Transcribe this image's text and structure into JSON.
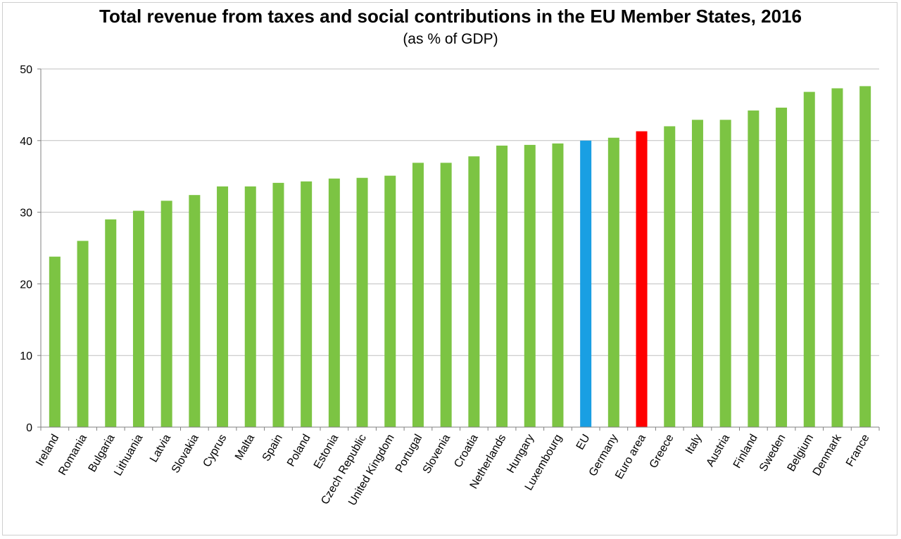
{
  "chart_data": {
    "type": "bar",
    "title": "Total revenue from taxes and social contributions in the EU Member States, 2016",
    "subtitle": "(as % of GDP)",
    "xlabel": "",
    "ylabel": "",
    "ylim": [
      0,
      50
    ],
    "yticks": [
      0,
      10,
      20,
      30,
      40,
      50
    ],
    "grid": true,
    "categories": [
      "Ireland",
      "Romania",
      "Bulgaria",
      "Lithuania",
      "Latvia",
      "Slovakia",
      "Cyprus",
      "Malta",
      "Spain",
      "Poland",
      "Estonia",
      "Czech Republic",
      "United Kingdom",
      "Portugal",
      "Slovenia",
      "Croatia",
      "Netherlands",
      "Hungary",
      "Luxembourg",
      "EU",
      "Germany",
      "Euro area",
      "Greece",
      "Italy",
      "Austria",
      "Finland",
      "Sweden",
      "Belgium",
      "Denmark",
      "France"
    ],
    "values": [
      23.8,
      26.0,
      29.0,
      30.2,
      31.6,
      32.4,
      33.6,
      33.6,
      34.1,
      34.3,
      34.7,
      34.8,
      35.1,
      36.9,
      36.9,
      37.8,
      39.3,
      39.4,
      39.6,
      40.0,
      40.4,
      41.3,
      42.0,
      42.9,
      42.9,
      44.2,
      44.6,
      46.8,
      47.3,
      47.6
    ],
    "colors": {
      "default": "#7cc443",
      "EU": "#199fe3",
      "Euro area": "#ff0000",
      "grid": "#bfbfbf",
      "axis": "#808080"
    }
  }
}
